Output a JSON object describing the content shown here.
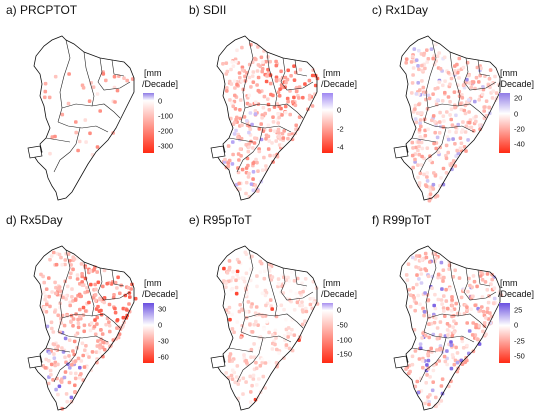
{
  "panels": [
    {
      "id": "a",
      "title": "a) PRCPTOT",
      "unit_line1": "[mm",
      "unit_line2": "/Decade]",
      "ticks": [
        {
          "label": "0",
          "value": 0
        },
        {
          "label": "-100",
          "value": -100
        },
        {
          "label": "-200",
          "value": -200
        },
        {
          "label": "-300",
          "value": -300
        }
      ],
      "scale_max": 50,
      "scale_min": -350,
      "top_color": "#8f7be6",
      "mid_color": "#ffffff",
      "bottom_color": "#ff2a14",
      "density": "sparse"
    },
    {
      "id": "b",
      "title": "b) SDII",
      "unit_line1": "[mm",
      "unit_line2": "/Decade]",
      "ticks": [
        {
          "label": "0",
          "value": 0
        },
        {
          "label": "-2",
          "value": -2
        },
        {
          "label": "-4",
          "value": -4
        }
      ],
      "scale_max": 1.8,
      "scale_min": -4.6,
      "top_color": "#9f88f2",
      "mid_color": "#ffffff",
      "bottom_color": "#ff2a14",
      "density": "dense-red"
    },
    {
      "id": "c",
      "title": "c) Rx1Day",
      "unit_line1": "[mm",
      "unit_line2": "/Decade]",
      "ticks": [
        {
          "label": "20",
          "value": 20
        },
        {
          "label": "0",
          "value": 0
        },
        {
          "label": "-20",
          "value": -20
        },
        {
          "label": "-40",
          "value": -40
        }
      ],
      "scale_max": 27,
      "scale_min": -52,
      "top_color": "#8f7be6",
      "mid_color": "#ffffff",
      "bottom_color": "#ff2a14",
      "density": "dense-mixed"
    },
    {
      "id": "d",
      "title": "d) Rx5Day",
      "unit_line1": "[mm",
      "unit_line2": "/Decade]",
      "ticks": [
        {
          "label": "30",
          "value": 30
        },
        {
          "label": "0",
          "value": 0
        },
        {
          "label": "-30",
          "value": -30
        },
        {
          "label": "-60",
          "value": -60
        }
      ],
      "scale_max": 42,
      "scale_min": -72,
      "top_color": "#6a4fe0",
      "mid_color": "#ffffff",
      "bottom_color": "#ff2a14",
      "density": "dense-red"
    },
    {
      "id": "e",
      "title": "e) R95pToT",
      "unit_line1": "[mm",
      "unit_line2": "/Decade]",
      "ticks": [
        {
          "label": "0",
          "value": 0
        },
        {
          "label": "-50",
          "value": -50
        },
        {
          "label": "-100",
          "value": -100
        },
        {
          "label": "-150",
          "value": -150
        }
      ],
      "scale_max": 25,
      "scale_min": -180,
      "top_color": "#a890f0",
      "mid_color": "#ffffff",
      "bottom_color": "#ff2a14",
      "density": "dense-light"
    },
    {
      "id": "f",
      "title": "f) R99pToT",
      "unit_line1": "[mm",
      "unit_line2": "/Decade]",
      "ticks": [
        {
          "label": "25",
          "value": 25
        },
        {
          "label": "0",
          "value": 0
        },
        {
          "label": "-25",
          "value": -25
        },
        {
          "label": "-50",
          "value": -50
        }
      ],
      "scale_max": 37,
      "scale_min": -62,
      "top_color": "#6a4fe0",
      "mid_color": "#ffffff",
      "bottom_color": "#ff2a14",
      "density": "dense-mixed"
    }
  ]
}
